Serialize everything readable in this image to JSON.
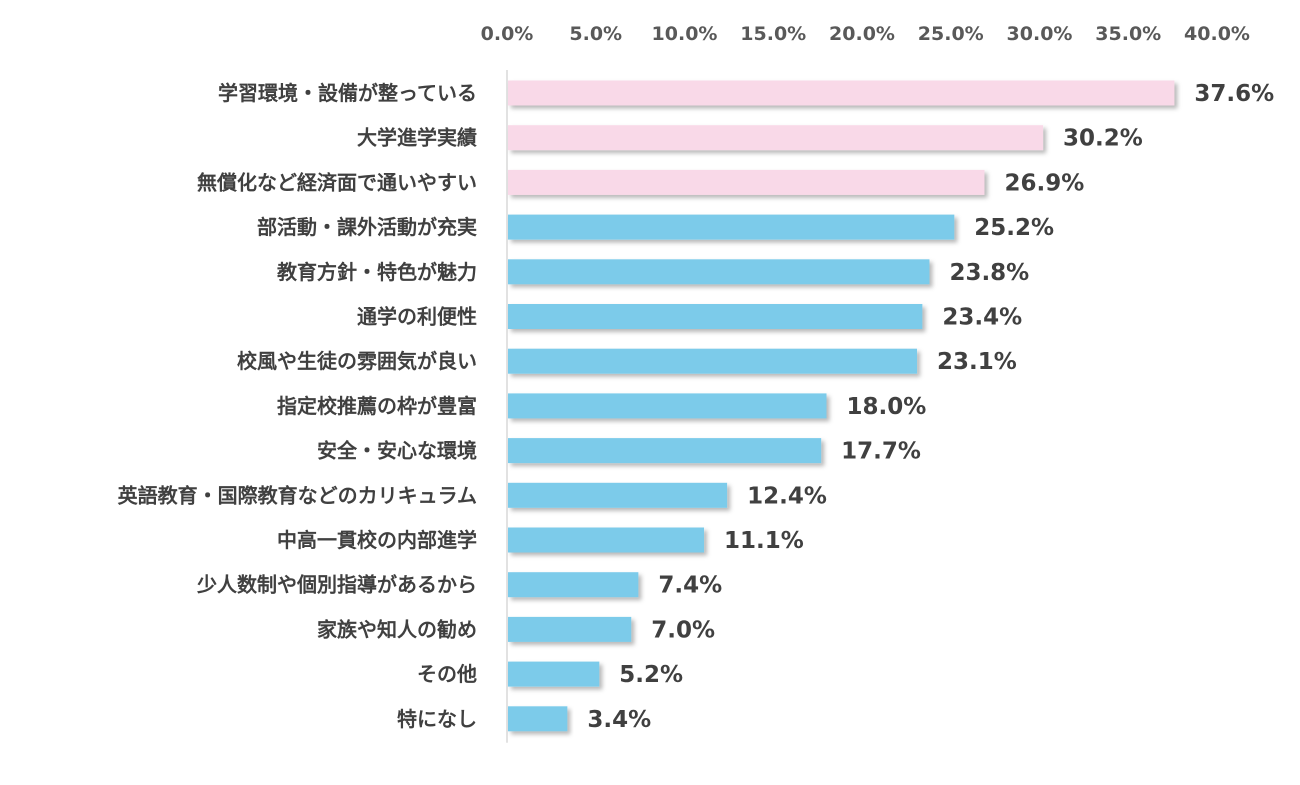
{
  "chart_data": {
    "type": "bar",
    "orientation": "horizontal",
    "categories": [
      "学習環境・設備が整っている",
      "大学進学実績",
      "無償化など経済面で通いやすい",
      "部活動・課外活動が充実",
      "教育方針・特色が魅力",
      "通学の利便性",
      "校風や生徒の雰囲気が良い",
      "指定校推薦の枠が豊富",
      "安全・安心な環境",
      "英語教育・国際教育などのカリキュラム",
      "中高一貫校の内部進学",
      "少人数制や個別指導があるから",
      "家族や知人の勧め",
      "その他",
      "特になし"
    ],
    "values": [
      37.6,
      30.2,
      26.9,
      25.2,
      23.8,
      23.4,
      23.1,
      18.0,
      17.7,
      12.4,
      11.1,
      7.4,
      7.0,
      5.2,
      3.4
    ],
    "value_labels": [
      "37.6%",
      "30.2%",
      "26.9%",
      "25.2%",
      "23.8%",
      "23.4%",
      "23.1%",
      "18.0%",
      "17.7%",
      "12.4%",
      "11.1%",
      "7.4%",
      "7.0%",
      "5.2%",
      "3.4%"
    ],
    "highlight_count": 3,
    "colors": {
      "highlight": "#f9d9e8",
      "default": "#7ccbea",
      "label": "#404040",
      "axis": "#d9d9d9"
    },
    "xlim": [
      0,
      40
    ],
    "xticks": [
      0,
      5,
      10,
      15,
      20,
      25,
      30,
      35,
      40
    ],
    "xtick_labels": [
      "0.0%",
      "5.0%",
      "10.0%",
      "15.0%",
      "20.0%",
      "25.0%",
      "30.0%",
      "35.0%",
      "40.0%"
    ],
    "axis_position": "top",
    "grid": false,
    "legend": "none",
    "title": "",
    "xlabel": "",
    "ylabel": ""
  }
}
